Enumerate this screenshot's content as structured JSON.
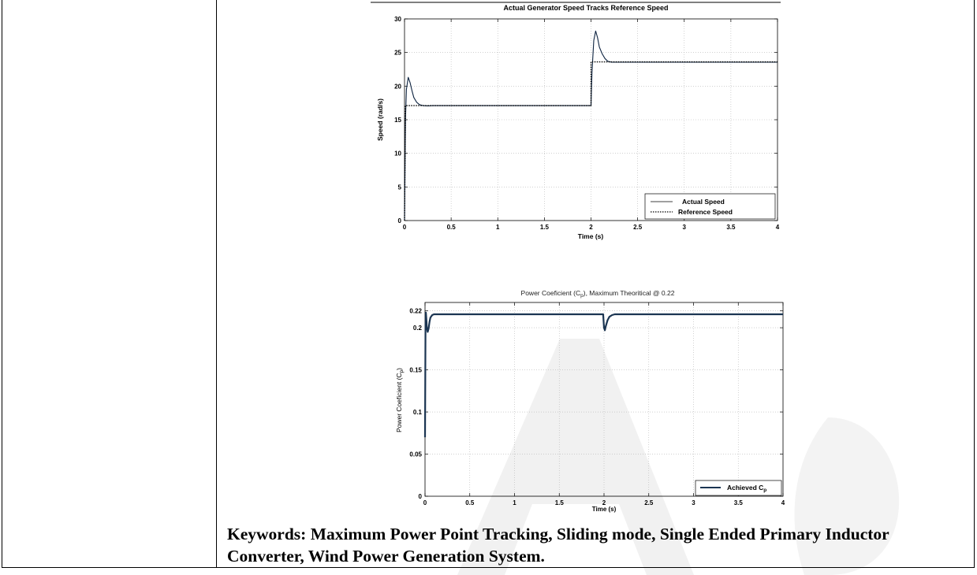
{
  "chart_data": [
    {
      "type": "line",
      "title": "Actual Generator Speed Tracks Reference Speed",
      "xlabel": "Time (s)",
      "ylabel": "Speed (rad/s)",
      "xlim": [
        0,
        4
      ],
      "ylim": [
        0,
        30
      ],
      "xticks": [
        "0",
        "0.5",
        "1",
        "1.5",
        "2",
        "2.5",
        "3",
        "3.5",
        "4"
      ],
      "yticks": [
        "0",
        "5",
        "10",
        "15",
        "20",
        "25",
        "30"
      ],
      "grid": true,
      "legend": "bottom-right",
      "series": [
        {
          "name": "Actual Speed",
          "style": "solid",
          "x": [
            0,
            0.01,
            0.02,
            0.04,
            0.06,
            0.08,
            0.1,
            0.13,
            0.16,
            0.2,
            0.25,
            0.3,
            2.0,
            2.01,
            2.03,
            2.05,
            2.07,
            2.09,
            2.12,
            2.15,
            2.18,
            2.22,
            2.27,
            2.35,
            4.0
          ],
          "y": [
            0,
            15,
            19.5,
            21.3,
            20.5,
            19.3,
            18.3,
            17.6,
            17.25,
            17.1,
            17.05,
            17.1,
            17.1,
            22,
            26.8,
            28.2,
            27.2,
            25.8,
            24.8,
            24.1,
            23.7,
            23.55,
            23.55,
            23.55,
            23.55
          ]
        },
        {
          "name": "Reference Speed",
          "style": "dotted",
          "x": [
            0,
            0.01,
            0.02,
            2.0,
            2.0,
            4.0
          ],
          "y": [
            0,
            17.1,
            17.1,
            17.1,
            23.6,
            23.6
          ]
        }
      ]
    },
    {
      "type": "line",
      "title": "Power Coeficient (C_p), Maximum Theoritical @ 0.22",
      "xlabel": "Time (s)",
      "ylabel": "Power Coeficient (C_p)",
      "xlim": [
        0,
        4
      ],
      "ylim": [
        0,
        0.23
      ],
      "xticks": [
        "0",
        "0.5",
        "1",
        "1.5",
        "2",
        "2.5",
        "3",
        "3.5",
        "4"
      ],
      "yticks": [
        "0",
        "0.05",
        "0.1",
        "0.15",
        "0.2",
        "0.22"
      ],
      "grid": true,
      "legend": "bottom-right",
      "series": [
        {
          "name": "Achieved C_p",
          "style": "solid",
          "x": [
            0,
            0.005,
            0.01,
            0.015,
            0.02,
            0.03,
            0.04,
            0.05,
            0.06,
            0.08,
            0.1,
            0.13,
            1.99,
            2.0,
            2.01,
            2.02,
            2.04,
            2.06,
            2.09,
            2.12,
            4.0
          ],
          "y": [
            0.07,
            0.2,
            0.218,
            0.21,
            0.2,
            0.195,
            0.199,
            0.207,
            0.212,
            0.215,
            0.216,
            0.216,
            0.216,
            0.2,
            0.197,
            0.202,
            0.209,
            0.213,
            0.215,
            0.216,
            0.216
          ]
        }
      ]
    }
  ],
  "keywords_text": "Keywords: Maximum Power Point Tracking, Sliding mode, Single Ended Primary Inductor Converter, Wind Power Generation System."
}
